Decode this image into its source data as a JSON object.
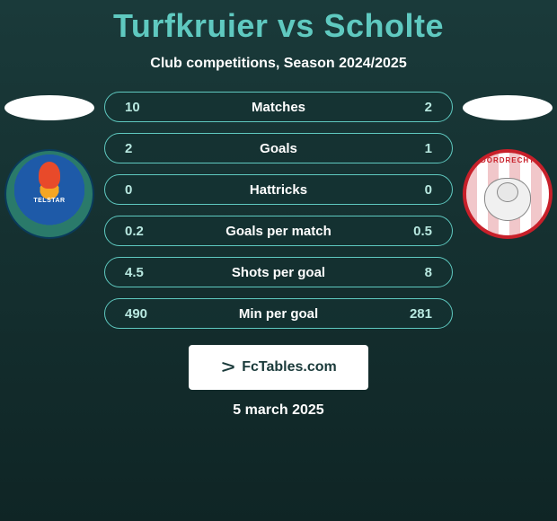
{
  "header": {
    "title": "Turfkruier vs Scholte",
    "title_color": "#5fc9c0",
    "subtitle": "Club competitions, Season 2024/2025"
  },
  "background_gradient": [
    "#1a3a3a",
    "#0f2525"
  ],
  "logos": {
    "left": {
      "name": "telstar-logo",
      "primary_color": "#1e5aa8",
      "accent_color": "#f5a623",
      "ring_color": "#2a7a6a",
      "flame_color": "#e84a2a",
      "text": "TELSTAR"
    },
    "right": {
      "name": "dordrecht-logo",
      "primary_color": "#c8202a",
      "bg_color": "#ffffff",
      "arc_text": "DORDRECHT"
    }
  },
  "stats": {
    "bar_border_color": "#5fc9c0",
    "bar_bg_color": "rgba(20,50,50,0.6)",
    "value_color": "#b8e8e0",
    "label_color": "#ffffff",
    "rows": [
      {
        "left": "10",
        "label": "Matches",
        "right": "2"
      },
      {
        "left": "2",
        "label": "Goals",
        "right": "1"
      },
      {
        "left": "0",
        "label": "Hattricks",
        "right": "0"
      },
      {
        "left": "0.2",
        "label": "Goals per match",
        "right": "0.5"
      },
      {
        "left": "4.5",
        "label": "Shots per goal",
        "right": "8"
      },
      {
        "left": "490",
        "label": "Min per goal",
        "right": "281"
      }
    ]
  },
  "badge": {
    "text": "FcTables.com",
    "bg_color": "#ffffff",
    "text_color": "#1a3a3a"
  },
  "footer": {
    "date": "5 march 2025"
  }
}
